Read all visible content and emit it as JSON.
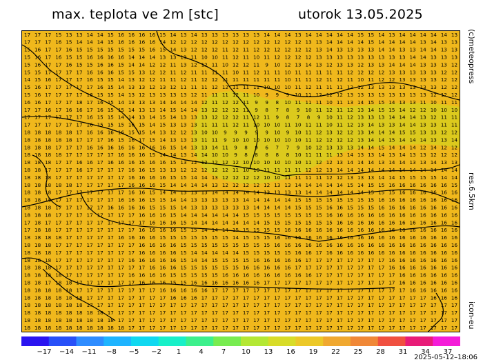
{
  "header": {
    "title": "max. teplota ve 2m [stc]",
    "date": "utorok 13.05.2025"
  },
  "side_labels": {
    "credit": "(c)meteopress",
    "resolution": "res.6.5km",
    "model": "icon-eu"
  },
  "colorbar": {
    "colors": [
      "#2a14f0",
      "#2850f8",
      "#2e8cff",
      "#1eb4ff",
      "#10d8f0",
      "#18f0c8",
      "#3cf08c",
      "#78ec50",
      "#b4e834",
      "#d8dc28",
      "#ecc828",
      "#f0a830",
      "#f08838",
      "#f05040",
      "#e81c78",
      "#f41cd8"
    ],
    "tick_labels": [
      "-17",
      "-14",
      "-11",
      "-8",
      "-5",
      "-2",
      "1",
      "4",
      "7",
      "10",
      "13",
      "16",
      "19",
      "22",
      "25",
      "28",
      "31",
      "34",
      "37"
    ]
  },
  "timestamp": "2025-05-12–18:06",
  "map": {
    "background_color": "#f0b81c",
    "cool_patch_color": "#d9cc1e",
    "border_color": "#000000",
    "grid_rows": [
      "17 17 17 15 13 13 14 14 15 16 16 16 16 15 14 13 14 13 13 13 13 13 13 14 14 14 13 14 14 14 14 14 15 15 14 13 14 14 14 14 14 13",
      "17 17 17 16 15 14 14 14 15 16 16 16 16 14 12 12 12 12 12 12 12 12 12 12 12 12 12 13 13 14 14 14 14 15 14 14 14 14 13 14 13 13",
      "15 16 17 17 16 15 15 15 15 15 15 15 16 15 14 13 12 12 12 11 12 11 12 12 12 12 12 12 13 14 13 13 13 13 14 14 13 13 14 14 13 13",
      "15 16 17 16 15 15 16 16 16 16 14 14 14 13 13 13 11 10 10 11 12 11 10 11 12 12 12 12 13 13 13 13 13 13 13 13 13 14 14 13 13 13",
      "15 16 17 17 16 15 15 16 16 15 14 14 12 12 11 13 12 12 11 10 12 12 11 9 10 12 13 14 13 12 13 13 12 13 13 14 14 14 13 13 13 12",
      "15 15 17 17 17 17 16 16 16 15 15 13 12 12 11 12 11 11 11 11 10 11 12 11 11 10 11 11 11 11 11 12 12 12 12 13 13 13 13 13 12 12",
      "14 15 16 17 17 17 16 15 15 14 13 12 12 11 11 12 11 12 12 11 11 11 11 11 11 10 11 11 12 11 12 11 10 11 12 12 13 13 13 13 12 12",
      "15 16 17 17 17 17 17 16 15 14 13 13 12 13 12 11 11 11 12 12 11 11 11 10 10 10 11 12 11 11 11 12 12 13 13 13 13 13 13 13 12 12",
      "15 16 17 17 17 17 16 15 15 14 13 12 13 13 13 13 12 11 11 11 12 11 10 9 9 9 10 11 12 12 12 13 13 13 13 13 13 13 13 12 12 12",
      "16 16 17 17 17 18 17 16 15 14 13 13 13 14 14 14 14 12 11 12 12 11 9 9 8 10 11 11 11 10 11 13 14 15 15 14 13 13 11 10 11 11",
      "17 17 16 17 16 16 17 16 15 15 14 13 13 14 15 14 14 13 12 12 12 11 9 8 7 8 9 10 11 12 11 12 13 14 15 15 14 12 12 10 10 10",
      "17 17 17 17 17 17 16 15 15 14 14 13 14 15 14 13 13 13 12 12 12 11 12 11 9 8 7 8 9 10 11 12 13 13 13 14 14 14 13 12 11 11",
      "17 17 17 17 17 17 16 15 15 15 16 15 14 15 13 13 13 11 11 11 12 11 10 10 10 11 10 11 11 10 11 12 13 14 13 13 14 14 13 13 11 11",
      "18 18 18 18 18 17 16 16 16 16 15 15 14 13 12 12 13 10 10 9 9 9 9 9 10 9 10 11 12 13 12 12 13 14 14 14 15 15 13 13 12 12",
      "18 18 18 18 18 17 17 17 16 15 16 17 15 14 13 13 13 11 11 9 10 10 10 10 10 10 10 11 12 12 12 12 13 14 14 15 14 14 14 13 13 14",
      "18 18 18 17 17 17 16 16 16 16 16 16 16 16 15 14 13 13 14 11 9 8 9 6 7 7 9 10 12 13 13 13 14 14 15 14 14 14 12 14 12 12",
      "18 18 18 18 17 17 17 17 17 16 16 16 15 14 14 13 14 14 10 10 9 8 8 8 8 8 10 11 11 11 13 14 13 13 14 13 14 13 13 12 12 12",
      "18 18 18 17 17 16 16 17 16 16 16 15 16 16 15 13 12 12 12 12 12 10 10 10 10 10 10 11 12 12 13 14 14 14 13 14 14 13 13 14 13 13",
      "18 18 17 17 17 16 17 17 17 17 16 16 15 13 13 12 12 12 12 12 11 10 10 11 11 11 11 12 12 13 14 14 14 14 14 14 14 14 14 14 14 14",
      "18 18 18 17 17 17 17 17 17 17 16 16 16 16 15 15 14 14 13 12 12 12 12 10 10 11 11 11 11 12 12 13 13 13 14 14 15 15 15 15 14 14",
      "18 18 18 18 18 17 17 17 17 17 16 16 16 15 14 14 14 14 13 12 12 12 12 12 13 13 14 14 14 14 14 15 14 15 15 16 16 16 16 16 16 15",
      "18 18 18 17 17 17 17 17 17 17 16 16 15 14 14 13 13 13 14 14 14 14 14 13 13 13 13 14 14 14 14 14 14 15 15 15 16 16 16 16 16 16",
      "18 18 18 17 17 17 17 17 17 16 16 16 15 15 14 14 13 13 13 13 13 14 14 14 14 14 15 15 15 15 15 15 15 15 16 16 16 16 16 16 16 16",
      "18 18 18 17 17 17 17 17 16 16 16 16 15 15 15 14 13 13 13 13 13 13 14 14 14 14 15 15 15 16 16 15 15 15 16 16 16 16 16 16 16 16",
      "18 18 18 17 17 17 17 17 17 17 17 16 16 16 15 14 14 14 14 14 14 15 15 15 15 15 15 15 15 16 16 16 16 16 16 16 16 16 16 16 16 16",
      "17 18 17 17 17 17 17 17 17 17 17 17 16 16 16 15 14 14 14 14 14 14 14 15 15 15 15 15 15 15 16 16 16 16 16 16 16 16 16 16 16 16",
      "17 18 18 17 17 17 17 17 17 17 17 16 16 16 16 15 15 14 14 14 15 15 15 15 15 16 16 16 16 16 16 16 16 16 16 16 16 16 16 16 16 16",
      "18 18 18 18 17 17 17 17 17 16 16 16 16 15 15 15 15 15 15 15 14 15 15 15 16 16 16 16 16 16 16 16 16 16 16 16 16 16 16 16 16 16",
      "18 18 18 17 17 17 17 17 17 17 17 16 16 16 16 15 15 15 15 15 15 15 15 15 16 16 16 16 16 16 16 16 16 16 16 16 16 16 16 16 16 16",
      "18 18 18 17 17 17 17 17 17 17 17 16 16 16 16 15 14 14 14 14 14 15 15 15 15 15 16 16 17 16 16 16 16 16 16 16 16 16 16 16 16 16",
      "18 18 18 17 17 17 17 17 17 17 16 16 16 16 16 15 14 14 15 15 15 15 16 16 16 16 16 17 17 17 17 17 17 17 17 16 16 16 16 16 16 16",
      "18 18 18 17 17 17 17 17 17 17 17 17 16 16 16 15 15 15 15 15 15 16 16 16 16 16 17 17 17 17 17 17 17 17 17 16 16 16 16 16 16 16",
      "18 18 18 18 17 17 17 17 17 17 16 16 16 16 15 15 15 15 15 16 16 16 16 16 16 16 16 16 17 17 17 17 17 17 17 17 16 16 16 16 16 16",
      "18 18 17 18 18 17 17 17 17 17 17 16 16 16 15 15 16 16 16 16 16 16 16 17 17 17 17 17 17 17 17 17 17 17 17 17 16 16 16 16 16 16",
      "18 18 18 18 18 17 17 17 17 17 17 17 17 16 16 16 16 16 17 17 17 17 17 17 17 17 17 17 17 17 17 17 17 17 17 17 17 16 16 16 16 16",
      "18 18 18 18 18 18 17 17 17 17 17 17 17 17 16 16 16 17 17 17 17 17 17 17 17 17 17 17 17 17 17 17 17 17 17 17 17 17 17 16 16 16",
      "18 18 18 18 18 18 17 17 17 17 17 17 17 17 17 17 17 17 17 17 17 17 17 17 17 17 17 17 17 17 17 17 17 17 17 17 17 17 17 17 17 17",
      "18 18 18 18 18 18 18 18 17 17 17 17 17 17 17 17 17 17 17 17 17 17 17 17 17 17 17 17 17 17 17 17 17 17 17 17 17 17 17 17 17 17",
      "18 18 18 18 18 18 18 18 18 17 17 17 17 17 17 17 17 17 17 17 17 17 17 17 17 17 17 17 17 17 17 17 17 17 17 17 17 17 17 17 17 17",
      "18 18 18 18 18 18 18 18 18 18 17 17 17 17 17 17 17 17 17 17 17 17 17 17 17 17 17 17 17 17 17 17 17 17 17 17 17 17 17 17 17 17"
    ]
  }
}
